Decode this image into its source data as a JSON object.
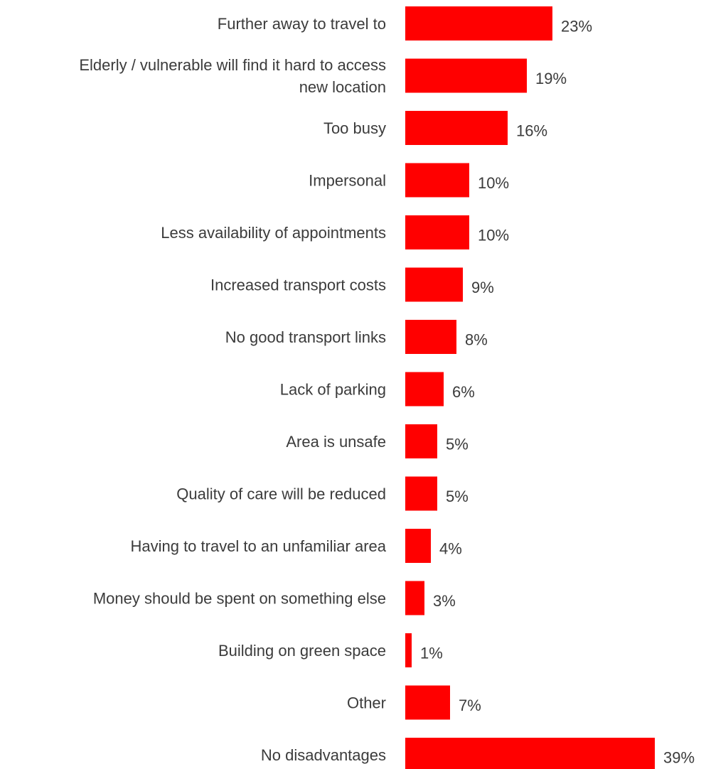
{
  "chart_data": {
    "type": "bar",
    "orientation": "horizontal",
    "title": "",
    "xlabel": "",
    "ylabel": "",
    "xlim": [
      0,
      39
    ],
    "grid": false,
    "legend": "none",
    "bar_color": "#ff0000",
    "text_color": "#3b3b3b",
    "value_suffix": "%",
    "categories": [
      [
        "Further away to travel to"
      ],
      [
        "Elderly / vulnerable will find it hard to access",
        "new location"
      ],
      [
        "Too busy"
      ],
      [
        "Impersonal"
      ],
      [
        "Less availability of appointments"
      ],
      [
        "Increased transport costs"
      ],
      [
        "No good transport links"
      ],
      [
        "Lack of parking"
      ],
      [
        "Area is unsafe"
      ],
      [
        "Quality of care will be reduced"
      ],
      [
        "Having to travel to an unfamiliar area"
      ],
      [
        "Money should be spent on something else"
      ],
      [
        "Building on green space"
      ],
      [
        "Other"
      ],
      [
        "No disadvantages"
      ]
    ],
    "values": [
      23,
      19,
      16,
      10,
      10,
      9,
      8,
      6,
      5,
      5,
      4,
      3,
      1,
      7,
      39
    ],
    "value_labels": [
      "23%",
      "19%",
      "16%",
      "10%",
      "10%",
      "9%",
      "8%",
      "6%",
      "5%",
      "5%",
      "4%",
      "3%",
      "1%",
      "7%",
      "39%"
    ]
  }
}
